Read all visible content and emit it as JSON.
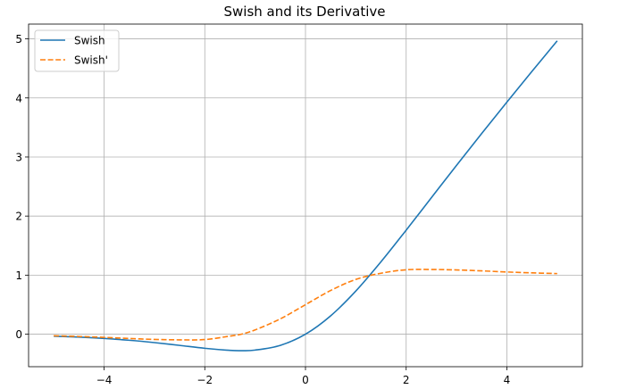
{
  "chart_data": {
    "type": "line",
    "title": "Swish and its Derivative",
    "xlabel": "",
    "ylabel": "",
    "xlim": [
      -5.5,
      5.5
    ],
    "ylim": [
      -0.55,
      5.25
    ],
    "x_ticks": [
      -4,
      -2,
      0,
      2,
      4
    ],
    "x_tick_labels": [
      "−4",
      "−2",
      "0",
      "2",
      "4"
    ],
    "y_ticks": [
      0,
      1,
      2,
      3,
      4,
      5
    ],
    "y_tick_labels": [
      "0",
      "1",
      "2",
      "3",
      "4",
      "5"
    ],
    "grid": true,
    "legend_position": "top-left",
    "x": [
      -5.0,
      -4.5,
      -4.0,
      -3.5,
      -3.0,
      -2.5,
      -2.0,
      -1.5,
      -1.278,
      -1.0,
      -0.5,
      0.0,
      0.5,
      1.0,
      1.5,
      2.0,
      2.5,
      3.0,
      3.5,
      4.0,
      4.5,
      5.0
    ],
    "series": [
      {
        "name": "Swish",
        "color": "#1f77b4",
        "style": "solid",
        "values": [
          -0.0335,
          -0.0494,
          -0.0719,
          -0.1027,
          -0.1423,
          -0.1896,
          -0.2384,
          -0.2736,
          -0.2785,
          -0.2689,
          -0.1888,
          0.0,
          0.3112,
          0.7311,
          1.2264,
          1.7616,
          2.3104,
          2.8577,
          3.3973,
          3.9281,
          4.4506,
          4.9665
        ]
      },
      {
        "name": "Swish'",
        "color": "#ff7f0e",
        "style": "dashed",
        "values": [
          -0.0266,
          -0.0383,
          -0.0536,
          -0.0724,
          -0.0881,
          -0.0953,
          -0.0908,
          -0.0323,
          0.0,
          0.0723,
          0.26,
          0.5,
          0.74,
          0.9277,
          1.0323,
          1.0908,
          1.0953,
          1.0881,
          1.0724,
          1.0536,
          1.0383,
          1.0266
        ]
      }
    ]
  }
}
